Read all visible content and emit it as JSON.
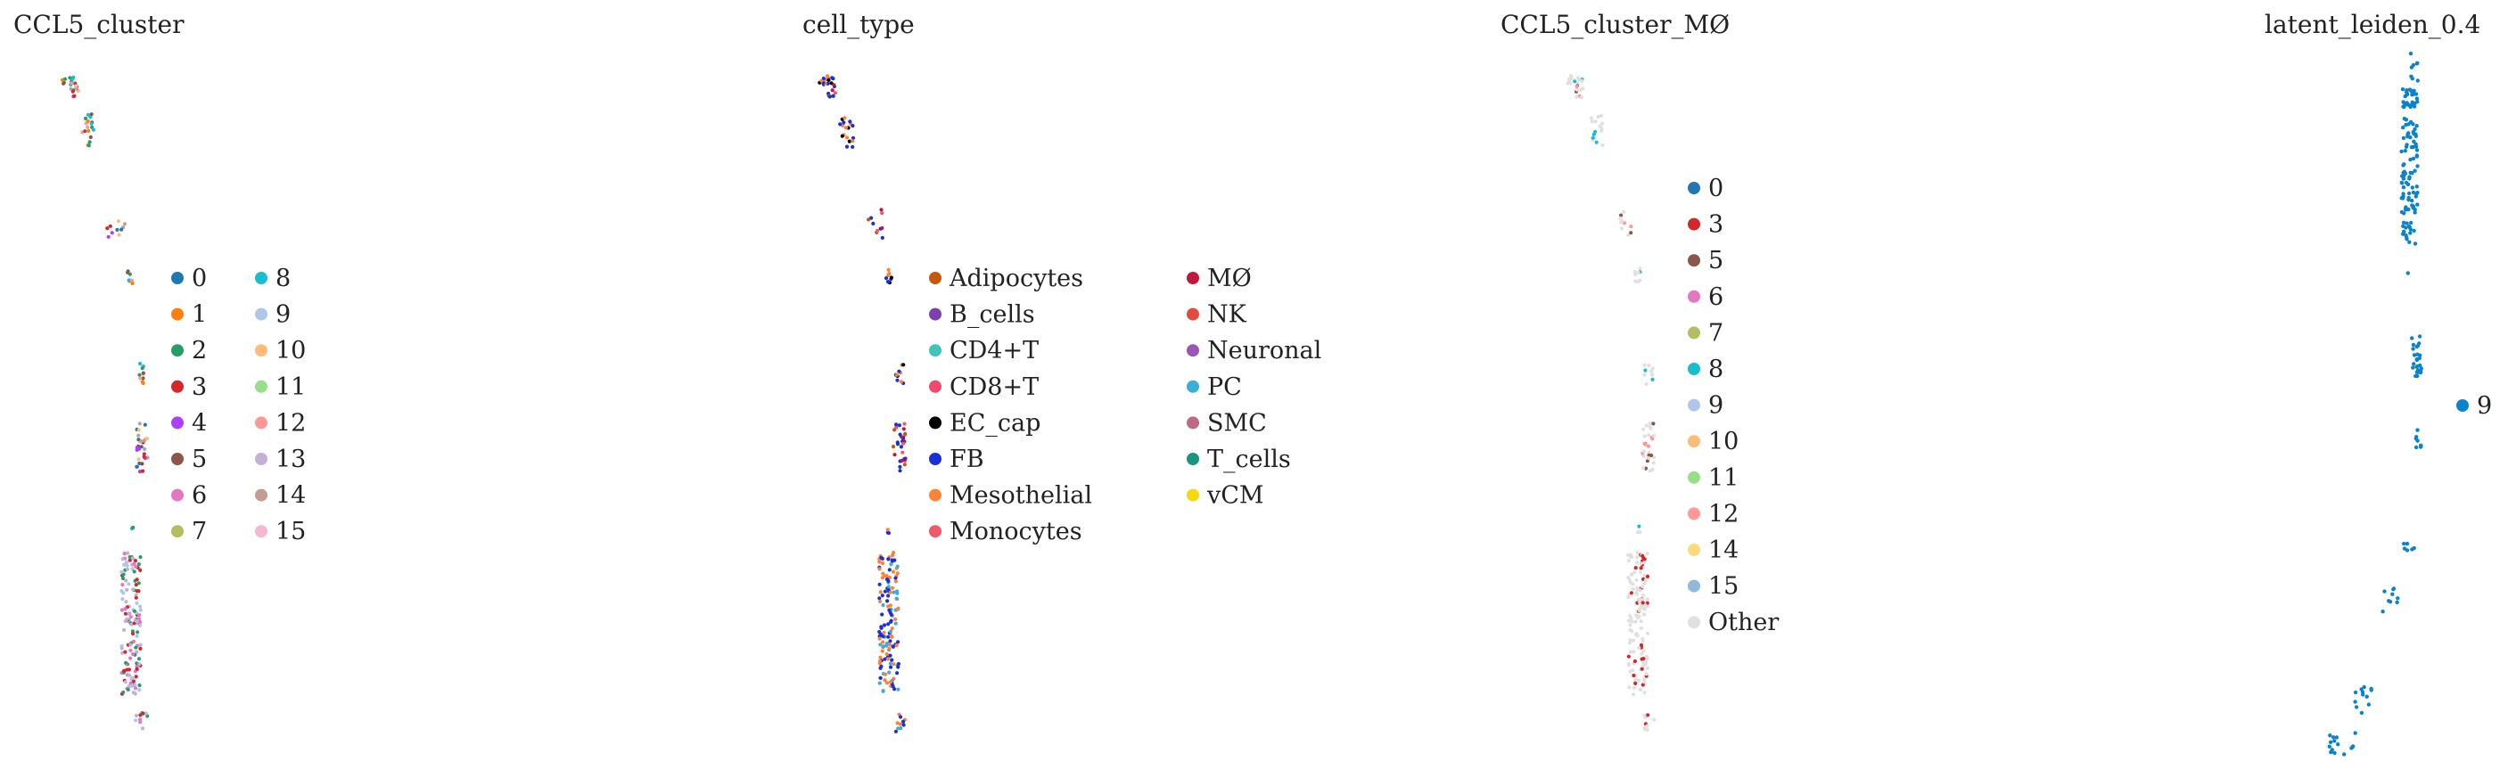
{
  "chart_data": [
    {
      "type": "scatter",
      "title": "CCL5_cluster",
      "legend_placement": "right",
      "legend_columns": 2,
      "categories": [
        "0",
        "1",
        "2",
        "3",
        "4",
        "5",
        "6",
        "7",
        "8",
        "9",
        "10",
        "11",
        "12",
        "13",
        "14",
        "15"
      ],
      "colors": [
        "#1f77b4",
        "#ff7f0e",
        "#279e68",
        "#d62728",
        "#aa40fc",
        "#8c564b",
        "#e377c2",
        "#b5bd61",
        "#17becf",
        "#aec7e8",
        "#ffbb78",
        "#98df8a",
        "#ff9896",
        "#c5b0d5",
        "#c49c94",
        "#f7b6d2"
      ],
      "point_colors": [
        "#ff7f0e",
        "#279e68",
        "#d62728",
        "#1f77b4",
        "#8c564b",
        "#e377c2",
        "#aa40fc",
        "#b5bd61",
        "#17becf",
        "#aec7e8",
        "#ffbb78",
        "#98df8a",
        "#ff9896",
        "#c5b0d5",
        "#c49c94",
        "#f7b6d2",
        "#279e68",
        "#d62728",
        "#1f77b4",
        "#8c564b"
      ]
    },
    {
      "type": "scatter",
      "title": "cell_type",
      "legend_placement": "right",
      "legend_columns": 2,
      "categories": [
        "Adipocytes",
        "B_cells",
        "CD4+T",
        "CD8+T",
        "EC_cap",
        "FB",
        "Mesothelial",
        "Monocytes",
        "MØ",
        "NK",
        "Neuronal",
        "PC",
        "SMC",
        "T_cells",
        "vCM"
      ],
      "colors": [
        "#c8570e",
        "#7e3fae",
        "#3fc5b8",
        "#f0486e",
        "#000000",
        "#1a2fd6",
        "#fb8238",
        "#ee5a6c",
        "#c2173b",
        "#e34b40",
        "#9b55b5",
        "#3aaed8",
        "#c06987",
        "#1b9582",
        "#f5d80d"
      ],
      "point_colors": [
        "#1a2fd6",
        "#fb8238",
        "#1a2fd6",
        "#fb8238",
        "#000000",
        "#1a2fd6",
        "#c8570e",
        "#e34b40",
        "#1a2fd6",
        "#fb8238",
        "#c2173b",
        "#1a2fd6",
        "#fb8238",
        "#3aaed8",
        "#1a2fd6",
        "#f5d80d",
        "#fb8238",
        "#1a2fd6",
        "#ee5a6c",
        "#1b9582"
      ]
    },
    {
      "type": "scatter",
      "title": "CCL5_cluster_MØ",
      "legend_placement": "right",
      "legend_columns": 1,
      "categories": [
        "0",
        "3",
        "5",
        "6",
        "7",
        "8",
        "9",
        "10",
        "11",
        "12",
        "14",
        "15",
        "Other"
      ],
      "colors": [
        "#1f77b4",
        "#d62728",
        "#8c564b",
        "#e377c2",
        "#b5bd61",
        "#17becf",
        "#aec7e8",
        "#ffbb78",
        "#98df8a",
        "#ff9896",
        "#ffda7a",
        "#8fbad9",
        "#e0e0e0"
      ],
      "point_colors": [
        "#e0e0e0",
        "#e0e0e0",
        "#e0e0e0",
        "#e0e0e0",
        "#e0e0e0",
        "#e0e0e0",
        "#e0e0e0",
        "#e0e0e0",
        "#e0e0e0",
        "#e0e0e0",
        "#e0e0e0",
        "#e0e0e0",
        "#e0e0e0",
        "#e0e0e0",
        "#ff9896",
        "#1f77b4",
        "#17becf",
        "#d62728",
        "#8c564b",
        "#98df8a"
      ]
    },
    {
      "type": "scatter",
      "title": "latent_leiden_0.4",
      "legend_placement": "right",
      "legend_columns": 1,
      "categories": [
        "9"
      ],
      "colors": [
        "#0a83cc"
      ],
      "point_colors": [
        "#0a83cc"
      ]
    }
  ]
}
